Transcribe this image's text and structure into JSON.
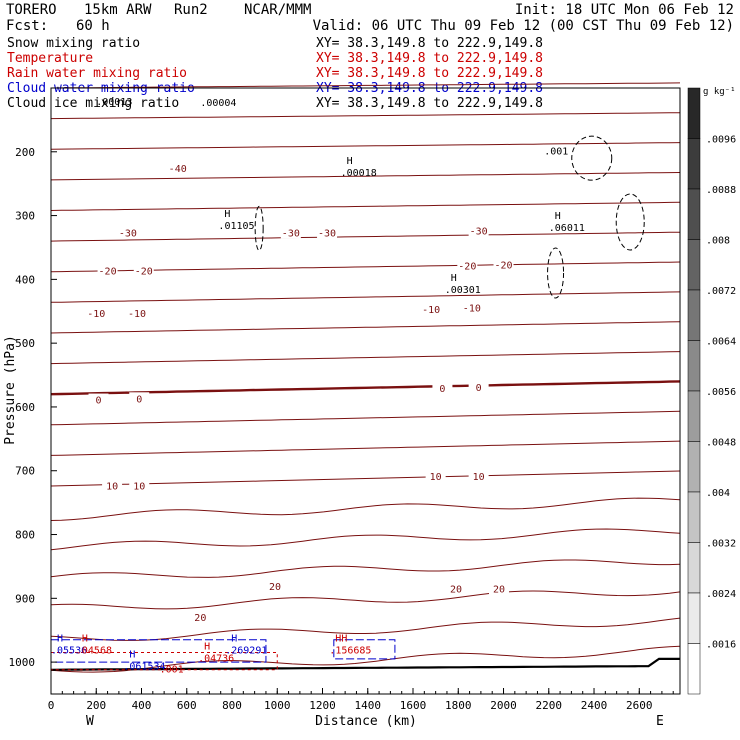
{
  "header": {
    "model": "TORERO",
    "resolution": "15km ARW",
    "run": "Run2",
    "org": "NCAR/MMM",
    "init": "Init: 18 UTC Mon 06 Feb 12",
    "fcst_label": "Fcst:",
    "fcst_value": "60 h",
    "valid": "Valid: 06 UTC Thu 09 Feb 12 (00 CST Thu 09 Feb 12)"
  },
  "fields": [
    {
      "name": "Snow mixing ratio",
      "xy": "XY=  38.3,149.8 to 222.9,149.8",
      "color": "#000000"
    },
    {
      "name": "Temperature",
      "xy": "XY=  38.3,149.8 to 222.9,149.8",
      "color": "#cc0000"
    },
    {
      "name": "Rain water mixing ratio",
      "xy": "XY=  38.3,149.8 to 222.9,149.8",
      "color": "#cc0000"
    },
    {
      "name": "Cloud water mixing ratio",
      "xy": "XY=  38.3,149.8 to 222.9,149.8",
      "color": "#0000cc"
    },
    {
      "name": "Cloud ice mixing ratio",
      "xy": "XY=  38.3,149.8 to 222.9,149.8",
      "color": "#000000"
    }
  ],
  "chart_data": {
    "type": "cross-section contour",
    "xlabel": "Distance (km)",
    "ylabel": "Pressure (hPa)",
    "xlim": [
      0,
      2780
    ],
    "ylim": [
      1050,
      100
    ],
    "x_ticks": [
      "0",
      "200",
      "400",
      "600",
      "800",
      "1000",
      "1200",
      "1400",
      "1600",
      "1800",
      "2000",
      "2200",
      "2400",
      "2600"
    ],
    "y_ticks": [
      "200",
      "300",
      "400",
      "500",
      "600",
      "700",
      "800",
      "900",
      "1000"
    ],
    "endpoints": {
      "left": "W",
      "right": "E"
    },
    "colorbar": {
      "unit": "g kg⁻¹",
      "labels": [
        ".0096",
        ".0088",
        ".008",
        ".0072",
        ".0064",
        ".0056",
        ".0048",
        ".004",
        ".0032",
        ".0024",
        ".0016"
      ]
    },
    "temperature_contour_labels": [
      {
        "text": "-40",
        "x": 560,
        "p": 227
      },
      {
        "text": "-30",
        "x": 340,
        "p": 328
      },
      {
        "text": "-30",
        "x": 1060,
        "p": 328
      },
      {
        "text": "-30",
        "x": 1220,
        "p": 328
      },
      {
        "text": "-30",
        "x": 1890,
        "p": 325
      },
      {
        "text": "-20",
        "x": 250,
        "p": 388
      },
      {
        "text": "-20",
        "x": 410,
        "p": 388
      },
      {
        "text": "-20",
        "x": 1840,
        "p": 380
      },
      {
        "text": "-20",
        "x": 2000,
        "p": 378
      },
      {
        "text": "-10",
        "x": 200,
        "p": 454
      },
      {
        "text": "-10",
        "x": 380,
        "p": 454
      },
      {
        "text": "-10",
        "x": 1680,
        "p": 448
      },
      {
        "text": "-10",
        "x": 1860,
        "p": 446
      },
      {
        "text": "0",
        "x": 210,
        "p": 590
      },
      {
        "text": "0",
        "x": 390,
        "p": 588
      },
      {
        "text": "0",
        "x": 1730,
        "p": 572
      },
      {
        "text": "0",
        "x": 1890,
        "p": 570
      },
      {
        "text": "10",
        "x": 270,
        "p": 725
      },
      {
        "text": "10",
        "x": 390,
        "p": 725
      },
      {
        "text": "10",
        "x": 1700,
        "p": 710
      },
      {
        "text": "10",
        "x": 1890,
        "p": 710
      },
      {
        "text": "20",
        "x": 660,
        "p": 931
      },
      {
        "text": "20",
        "x": 990,
        "p": 882
      },
      {
        "text": "20",
        "x": 1790,
        "p": 886
      },
      {
        "text": "20",
        "x": 1980,
        "p": 886
      }
    ],
    "extrema": [
      {
        "symbol": "H",
        "value": ".00018",
        "x": 1280,
        "p": 232,
        "color": "#000000"
      },
      {
        "symbol": "H",
        "value": ".01105",
        "x": 740,
        "p": 315,
        "color": "#000000"
      },
      {
        "symbol": "H",
        "value": ".06011",
        "x": 2200,
        "p": 318,
        "color": "#000000"
      },
      {
        "symbol": "H",
        "value": ".00301",
        "x": 1740,
        "p": 415,
        "color": "#000000"
      },
      {
        "symbol": "",
        "value": ".001",
        "x": 2180,
        "p": 198,
        "color": "#000000"
      },
      {
        "symbol": "",
        "value": ".00004",
        "x": 660,
        "p": 122,
        "color": "#000000"
      },
      {
        "symbol": "",
        "value": ".00013",
        "x": 200,
        "p": 120,
        "color": "#000000"
      },
      {
        "symbol": "H",
        "value": ".05536",
        "x": 0,
        "p": 980,
        "color": "#0000cc"
      },
      {
        "symbol": "H",
        "value": ".04568",
        "x": 110,
        "p": 980,
        "color": "#cc0000"
      },
      {
        "symbol": "H",
        "value": ".061534",
        "x": 320,
        "p": 1005,
        "color": "#0000cc"
      },
      {
        "symbol": "H",
        "value": ".04736",
        "x": 650,
        "p": 993,
        "color": "#cc0000"
      },
      {
        "symbol": "H",
        "value": ".269291",
        "x": 770,
        "p": 980,
        "color": "#0000cc"
      },
      {
        "symbol": "HH",
        "value": ".156685",
        "x": 1230,
        "p": 980,
        "color": "#cc0000"
      },
      {
        "symbol": "",
        "value": ".001",
        "x": 480,
        "p": 1010,
        "color": "#cc0000"
      }
    ]
  }
}
